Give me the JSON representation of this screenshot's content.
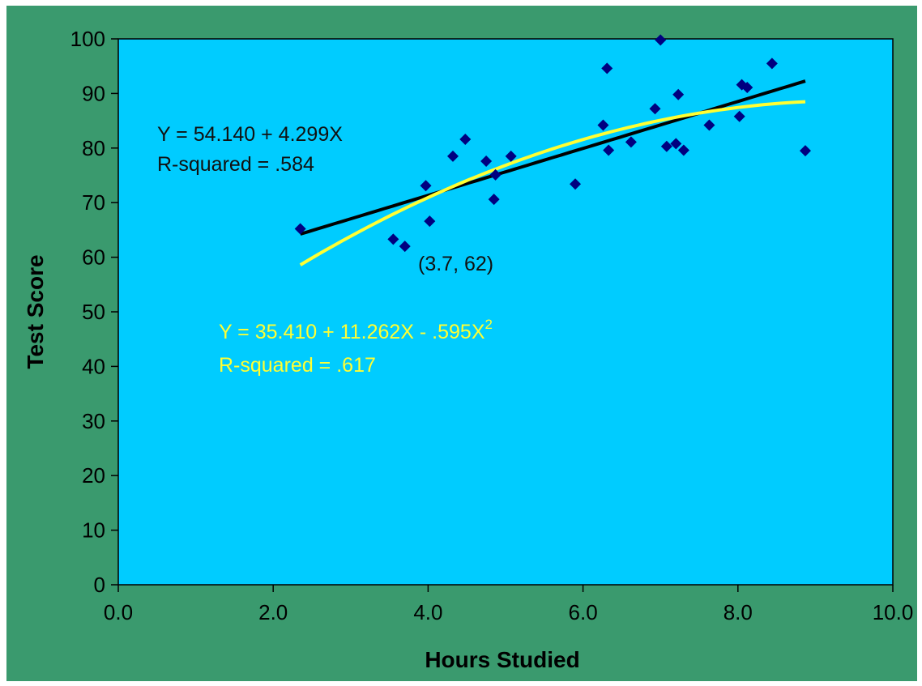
{
  "chart_data": {
    "type": "scatter",
    "xlabel": "Hours Studied",
    "ylabel": "Test Score",
    "xlim": [
      0,
      10
    ],
    "ylim": [
      0,
      100
    ],
    "x_ticks": [
      "0.0",
      "2.0",
      "4.0",
      "6.0",
      "8.0",
      "10.0"
    ],
    "y_ticks": [
      "0",
      "10",
      "20",
      "30",
      "40",
      "50",
      "60",
      "70",
      "80",
      "90",
      "100"
    ],
    "grid": false,
    "colors": {
      "background_frame": "#3a9a6e",
      "plot_area": "#00ccff",
      "points": "#000080",
      "linear_fit": "#000000",
      "quadratic_fit": "#ffff33"
    },
    "points": [
      {
        "x": 2.35,
        "y": 65.2
      },
      {
        "x": 3.55,
        "y": 63.3
      },
      {
        "x": 3.7,
        "y": 62.0
      },
      {
        "x": 3.97,
        "y": 73.1
      },
      {
        "x": 4.02,
        "y": 66.6
      },
      {
        "x": 4.32,
        "y": 78.5
      },
      {
        "x": 4.48,
        "y": 81.6
      },
      {
        "x": 4.75,
        "y": 77.6
      },
      {
        "x": 4.85,
        "y": 70.6
      },
      {
        "x": 4.87,
        "y": 75.1
      },
      {
        "x": 5.07,
        "y": 78.5
      },
      {
        "x": 5.9,
        "y": 73.4
      },
      {
        "x": 6.26,
        "y": 84.2
      },
      {
        "x": 6.31,
        "y": 94.6
      },
      {
        "x": 6.33,
        "y": 79.6
      },
      {
        "x": 6.62,
        "y": 81.1
      },
      {
        "x": 6.93,
        "y": 87.2
      },
      {
        "x": 7.0,
        "y": 99.8
      },
      {
        "x": 7.08,
        "y": 80.3
      },
      {
        "x": 7.2,
        "y": 80.8
      },
      {
        "x": 7.23,
        "y": 89.8
      },
      {
        "x": 7.3,
        "y": 79.6
      },
      {
        "x": 7.63,
        "y": 84.2
      },
      {
        "x": 8.02,
        "y": 85.8
      },
      {
        "x": 8.05,
        "y": 91.6
      },
      {
        "x": 8.12,
        "y": 91.1
      },
      {
        "x": 8.44,
        "y": 95.5
      },
      {
        "x": 8.87,
        "y": 79.5
      }
    ],
    "fits": [
      {
        "kind": "linear",
        "x_range": [
          2.35,
          8.87
        ],
        "coefficients": [
          54.14,
          4.299,
          0
        ],
        "color": "#000000"
      },
      {
        "kind": "quadratic",
        "x_range": [
          2.35,
          8.87
        ],
        "coefficients": [
          35.41,
          11.262,
          -0.595
        ],
        "color": "#ffff33"
      }
    ],
    "annotations": {
      "linear_eq": "Y = 54.140 + 4.299X",
      "linear_r2": "R-squared = .584",
      "point_label": "(3.7, 62)",
      "quad_eq": "Y = 35.410 + 11.262X - .595X",
      "quad_eq_sup": "2",
      "quad_r2": "R-squared = .617"
    }
  }
}
